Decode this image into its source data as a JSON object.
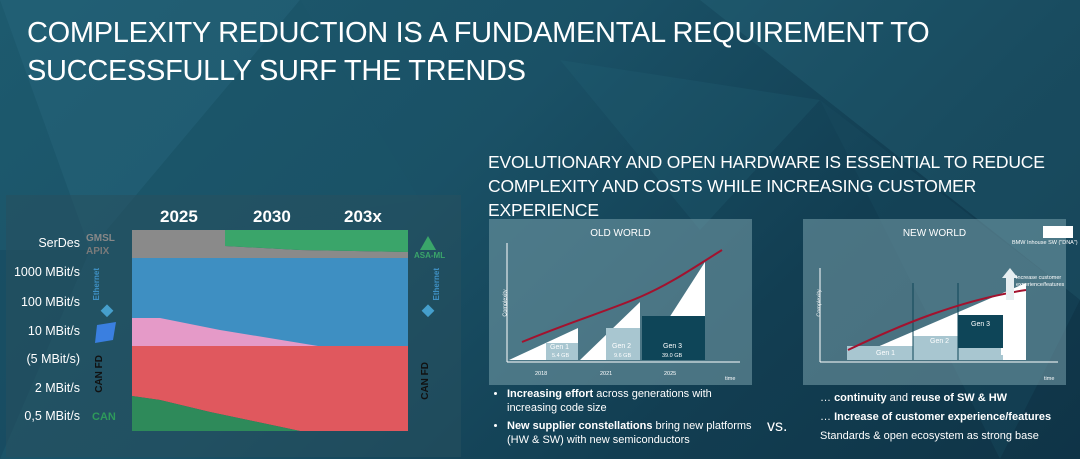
{
  "title": "COMPLEXITY REDUCTION IS A FUNDAMENTAL REQUIREMENT TO SUCCESSFULLY SURF THE TRENDS",
  "subtitle": "EVOLUTIONARY AND OPEN HARDWARE IS ESSENTIAL TO REDUCE COMPLEXITY AND COSTS WHILE INCREASING CUSTOMER EXPERIENCE",
  "left_chart": {
    "years": [
      "2025",
      "2030",
      "203x"
    ],
    "ylabels": [
      "SerDes",
      "1000 MBit/s",
      "100 MBit/s",
      "10 MBit/s",
      "(5 MBit/s)",
      "2 MBit/s",
      "0,5 MBit/s"
    ],
    "logos": {
      "gmsl": "GMSL",
      "apix": "APIX",
      "ethernet_left": "Ethernet",
      "ethernet_right": "Ethernet",
      "can_fd_left": "CAN FD",
      "can_fd_right": "CAN FD",
      "can": "CAN",
      "asa": "ASA-ML"
    },
    "colors": {
      "grey": "#8a8a8a",
      "green": "#3aa56a",
      "blue": "#3e8fc2",
      "pink": "#e59ac8",
      "red": "#e0585e",
      "darkgreen": "#2e8a5a"
    }
  },
  "old_world": {
    "title": "OLD WORLD",
    "yaxis": "Complexity",
    "xaxis": "time",
    "gens": [
      {
        "label": "Gen 1",
        "size": "5.4 GB"
      },
      {
        "label": "Gen 2",
        "size": "9.6 GB"
      },
      {
        "label": "Gen 3",
        "size": "39.0 GB"
      }
    ],
    "years": [
      "2018",
      "2021",
      "2025"
    ]
  },
  "new_world": {
    "title": "NEW WORLD",
    "yaxis": "Complexity",
    "xaxis": "time",
    "legend": "BMW Inhouse SW (\"DNA\")",
    "annotation": "Increase customer experience/features",
    "gens": [
      "Gen 1",
      "Gen 2",
      "Gen 3"
    ]
  },
  "bullets": [
    {
      "bold": "Increasing effort",
      "rest": " across generations with increasing code size"
    },
    {
      "bold": "New supplier constellations",
      "rest": " bring new platforms (HW & SW) with new semiconductors"
    }
  ],
  "vs": "vs.",
  "new_list": [
    {
      "pre": "… ",
      "bold": "continuity",
      "mid": " and ",
      "bold2": "reuse of SW & HW"
    },
    {
      "pre": "… ",
      "bold": "Increase of customer experience/features",
      "mid": "",
      "bold2": ""
    },
    {
      "pre": "",
      "bold": "",
      "mid": "Standards & open ecosystem as strong base",
      "bold2": ""
    }
  ]
}
